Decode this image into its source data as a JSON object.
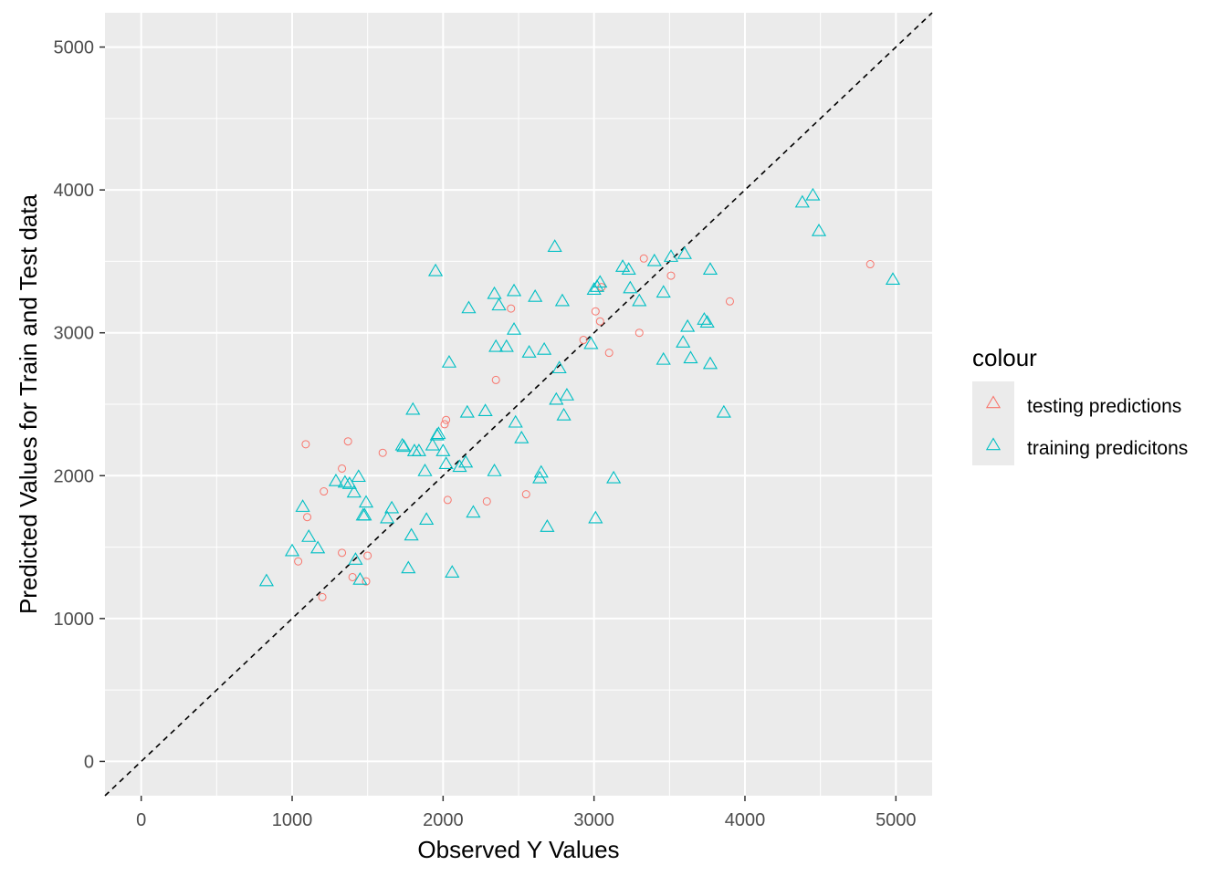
{
  "chart_data": {
    "type": "scatter",
    "xlabel": "Observed Y Values",
    "ylabel": "Predicted Values for Train and Test data",
    "xlim": [
      -240,
      5240
    ],
    "ylim": [
      -240,
      5240
    ],
    "x_ticks": [
      0,
      1000,
      2000,
      3000,
      4000,
      5000
    ],
    "y_ticks": [
      0,
      1000,
      2000,
      3000,
      4000,
      5000
    ],
    "x_tick_labels": [
      "0",
      "1000",
      "2000",
      "3000",
      "4000",
      "5000"
    ],
    "y_tick_labels": [
      "0",
      "1000",
      "2000",
      "3000",
      "4000",
      "5000"
    ],
    "grid": true,
    "reference_line": {
      "type": "identity",
      "style": "dashed",
      "color": "#000000"
    },
    "legend": {
      "title": "colour",
      "position": "right",
      "entries": [
        "testing predictions",
        "training predicitons"
      ]
    },
    "series": [
      {
        "name": "testing predictions",
        "color": "#F8766D",
        "shape": "circle",
        "points": [
          [
            1040,
            1400
          ],
          [
            1090,
            2220
          ],
          [
            1100,
            1710
          ],
          [
            1200,
            1150
          ],
          [
            1210,
            1890
          ],
          [
            1330,
            2050
          ],
          [
            1330,
            1460
          ],
          [
            1370,
            2240
          ],
          [
            1400,
            1290
          ],
          [
            1490,
            1260
          ],
          [
            1500,
            1440
          ],
          [
            1600,
            2160
          ],
          [
            2010,
            2360
          ],
          [
            2020,
            2390
          ],
          [
            2030,
            1830
          ],
          [
            2290,
            1820
          ],
          [
            2350,
            2670
          ],
          [
            2450,
            3170
          ],
          [
            2550,
            1870
          ],
          [
            2930,
            2950
          ],
          [
            3010,
            3150
          ],
          [
            3040,
            3080
          ],
          [
            3050,
            3320
          ],
          [
            3100,
            2860
          ],
          [
            3300,
            3000
          ],
          [
            3330,
            3520
          ],
          [
            3510,
            3400
          ],
          [
            3900,
            3220
          ],
          [
            4830,
            3480
          ]
        ]
      },
      {
        "name": "training predicitons",
        "color": "#00BFC4",
        "shape": "triangle",
        "points": [
          [
            830,
            1260
          ],
          [
            1000,
            1470
          ],
          [
            1070,
            1780
          ],
          [
            1110,
            1570
          ],
          [
            1170,
            1490
          ],
          [
            1290,
            1960
          ],
          [
            1350,
            1950
          ],
          [
            1380,
            1940
          ],
          [
            1410,
            1880
          ],
          [
            1420,
            1410
          ],
          [
            1440,
            1990
          ],
          [
            1450,
            1270
          ],
          [
            1470,
            1720
          ],
          [
            1480,
            1720
          ],
          [
            1490,
            1810
          ],
          [
            1630,
            1700
          ],
          [
            1660,
            1770
          ],
          [
            1730,
            2210
          ],
          [
            1740,
            2200
          ],
          [
            1770,
            1350
          ],
          [
            1790,
            1580
          ],
          [
            1800,
            2460
          ],
          [
            1810,
            2170
          ],
          [
            1840,
            2170
          ],
          [
            1880,
            2030
          ],
          [
            1890,
            1690
          ],
          [
            1930,
            2210
          ],
          [
            1950,
            3430
          ],
          [
            1960,
            2280
          ],
          [
            1970,
            2290
          ],
          [
            2000,
            2170
          ],
          [
            2020,
            2080
          ],
          [
            2040,
            2790
          ],
          [
            2060,
            1320
          ],
          [
            2110,
            2060
          ],
          [
            2150,
            2090
          ],
          [
            2160,
            2440
          ],
          [
            2170,
            3170
          ],
          [
            2200,
            1740
          ],
          [
            2280,
            2450
          ],
          [
            2340,
            2030
          ],
          [
            2340,
            3270
          ],
          [
            2350,
            2900
          ],
          [
            2370,
            3190
          ],
          [
            2420,
            2900
          ],
          [
            2470,
            3290
          ],
          [
            2470,
            3020
          ],
          [
            2480,
            2370
          ],
          [
            2520,
            2260
          ],
          [
            2570,
            2860
          ],
          [
            2610,
            3250
          ],
          [
            2640,
            1980
          ],
          [
            2650,
            2020
          ],
          [
            2670,
            2880
          ],
          [
            2690,
            1640
          ],
          [
            2740,
            3600
          ],
          [
            2750,
            2530
          ],
          [
            2770,
            2750
          ],
          [
            2790,
            3220
          ],
          [
            2800,
            2420
          ],
          [
            2820,
            2560
          ],
          [
            2980,
            2920
          ],
          [
            3000,
            3300
          ],
          [
            3010,
            1700
          ],
          [
            3020,
            3320
          ],
          [
            3040,
            3350
          ],
          [
            3130,
            1980
          ],
          [
            3190,
            3460
          ],
          [
            3230,
            3440
          ],
          [
            3240,
            3310
          ],
          [
            3300,
            3220
          ],
          [
            3400,
            3500
          ],
          [
            3460,
            3280
          ],
          [
            3460,
            2810
          ],
          [
            3510,
            3530
          ],
          [
            3600,
            3550
          ],
          [
            3590,
            2930
          ],
          [
            3620,
            3040
          ],
          [
            3640,
            2820
          ],
          [
            3730,
            3090
          ],
          [
            3750,
            3070
          ],
          [
            3770,
            3440
          ],
          [
            3770,
            2780
          ],
          [
            3860,
            2440
          ],
          [
            4380,
            3910
          ],
          [
            4450,
            3960
          ],
          [
            4490,
            3710
          ],
          [
            4980,
            3370
          ]
        ]
      }
    ]
  }
}
